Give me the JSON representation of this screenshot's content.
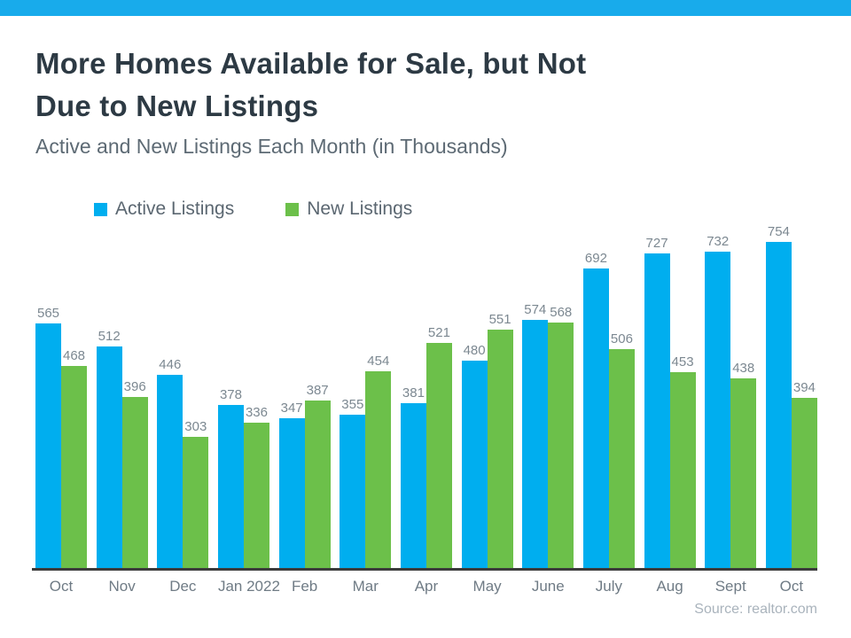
{
  "page": {
    "top_bar_color": "#18ABEB",
    "background": "#FFFFFF"
  },
  "header": {
    "title_line1": "More Homes Available for Sale, but Not",
    "title_line2": "Due to New Listings",
    "subtitle": "Active and New Listings Each Month (in Thousands)"
  },
  "legend": {
    "items": [
      {
        "label": "Active Listings",
        "color": "#00AEEF"
      },
      {
        "label": "New Listings",
        "color": "#6CC04A"
      }
    ]
  },
  "chart_data": {
    "type": "bar",
    "title": "More Homes Available for Sale, but Not Due to New Listings",
    "subtitle": "Active and New Listings Each Month (in Thousands)",
    "categories": [
      "Oct",
      "Nov",
      "Dec",
      "Jan 2022",
      "Feb",
      "Mar",
      "Apr",
      "May",
      "June",
      "July",
      "Aug",
      "Sept",
      "Oct"
    ],
    "series": [
      {
        "name": "Active Listings",
        "color": "#00AEEF",
        "values": [
          565,
          512,
          446,
          378,
          347,
          355,
          381,
          480,
          574,
          692,
          727,
          732,
          754
        ]
      },
      {
        "name": "New Listings",
        "color": "#6CC04A",
        "values": [
          468,
          396,
          303,
          336,
          387,
          454,
          521,
          551,
          568,
          506,
          453,
          438,
          394
        ]
      }
    ],
    "ylim": [
      0,
      754
    ],
    "grid": false,
    "data_labels": true,
    "legend_position": "top-left",
    "axis_color": "#3B3B3B",
    "label_color": "#7C8891"
  },
  "footer": {
    "source": "Source: realtor.com"
  }
}
